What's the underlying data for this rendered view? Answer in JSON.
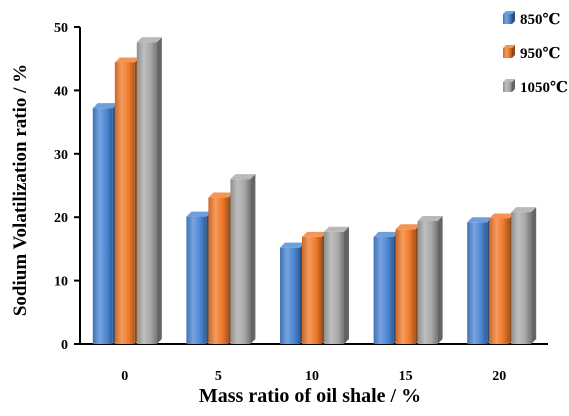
{
  "chart_data": {
    "type": "bar",
    "title": "",
    "xlabel": "Mass ratio of oil shale / %",
    "ylabel": "Sodium Volatilization ratio / %",
    "categories": [
      "0",
      "5",
      "10",
      "15",
      "20"
    ],
    "ylim": [
      0,
      50
    ],
    "yticks": [
      "0",
      "10",
      "20",
      "30",
      "40",
      "50"
    ],
    "grid": false,
    "legend_position": "top-right",
    "series": [
      {
        "name": "850℃",
        "color": "#4a86d4",
        "values": [
          37.2,
          20.1,
          15.2,
          16.9,
          19.2
        ]
      },
      {
        "name": "950℃",
        "color": "#f07a2a",
        "values": [
          44.4,
          23.1,
          16.9,
          18.1,
          19.8
        ]
      },
      {
        "name": "1050℃",
        "color": "#a8a8a8",
        "values": [
          47.6,
          26.0,
          17.7,
          19.4,
          20.8
        ]
      }
    ]
  }
}
